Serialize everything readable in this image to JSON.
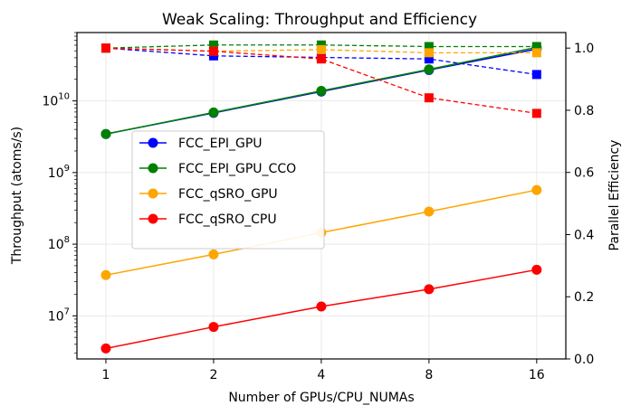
{
  "chart_data": {
    "type": "line",
    "title": "Weak Scaling: Throughput and Efficiency",
    "xlabel": "Number of GPUs/CPU_NUMAs",
    "ylabel_left": "Throughput (atoms/s)",
    "ylabel_right": "Parallel Efficiency",
    "x_scale": "log2",
    "y_left_scale": "log10",
    "categories": [
      "1",
      "2",
      "4",
      "8",
      "16"
    ],
    "x": [
      1,
      2,
      4,
      8,
      16
    ],
    "y_left_range": [
      2500000,
      90000000000
    ],
    "y_right_range": [
      0,
      1.05
    ],
    "y_left_ticks": [
      {
        "value": 10000000,
        "base": "10",
        "exp": "7"
      },
      {
        "value": 100000000,
        "base": "10",
        "exp": "8"
      },
      {
        "value": 1000000000,
        "base": "10",
        "exp": "9"
      },
      {
        "value": 10000000000,
        "base": "10",
        "exp": "10"
      }
    ],
    "y_right_ticks": [
      "0.0",
      "0.2",
      "0.4",
      "0.6",
      "0.8",
      "1.0"
    ],
    "grid": true,
    "legend_position": "center-left",
    "series": [
      {
        "name": "FCC_EPI_GPU",
        "color": "#0000ff",
        "throughput": [
          3450000000,
          6800000000,
          13500000000,
          27000000000,
          53000000000
        ],
        "efficiency": [
          1.0,
          0.975,
          0.97,
          0.965,
          0.915
        ]
      },
      {
        "name": "FCC_EPI_GPU_CCO",
        "color": "#008000",
        "throughput": [
          3450000000,
          6900000000,
          13800000000,
          27500000000,
          56000000000
        ],
        "efficiency": [
          1.0,
          1.01,
          1.01,
          1.005,
          1.005
        ]
      },
      {
        "name": "FCC_qSRO_GPU",
        "color": "#ffa500",
        "throughput": [
          37000000,
          72000000,
          145000000,
          285000000,
          570000000
        ],
        "efficiency": [
          1.0,
          0.99,
          0.995,
          0.985,
          0.985
        ]
      },
      {
        "name": "FCC_qSRO_CPU",
        "color": "#ff0000",
        "throughput": [
          3500000,
          7000000,
          13500000,
          23500000,
          44000000
        ],
        "efficiency": [
          1.0,
          0.99,
          0.965,
          0.84,
          0.79
        ]
      }
    ]
  }
}
